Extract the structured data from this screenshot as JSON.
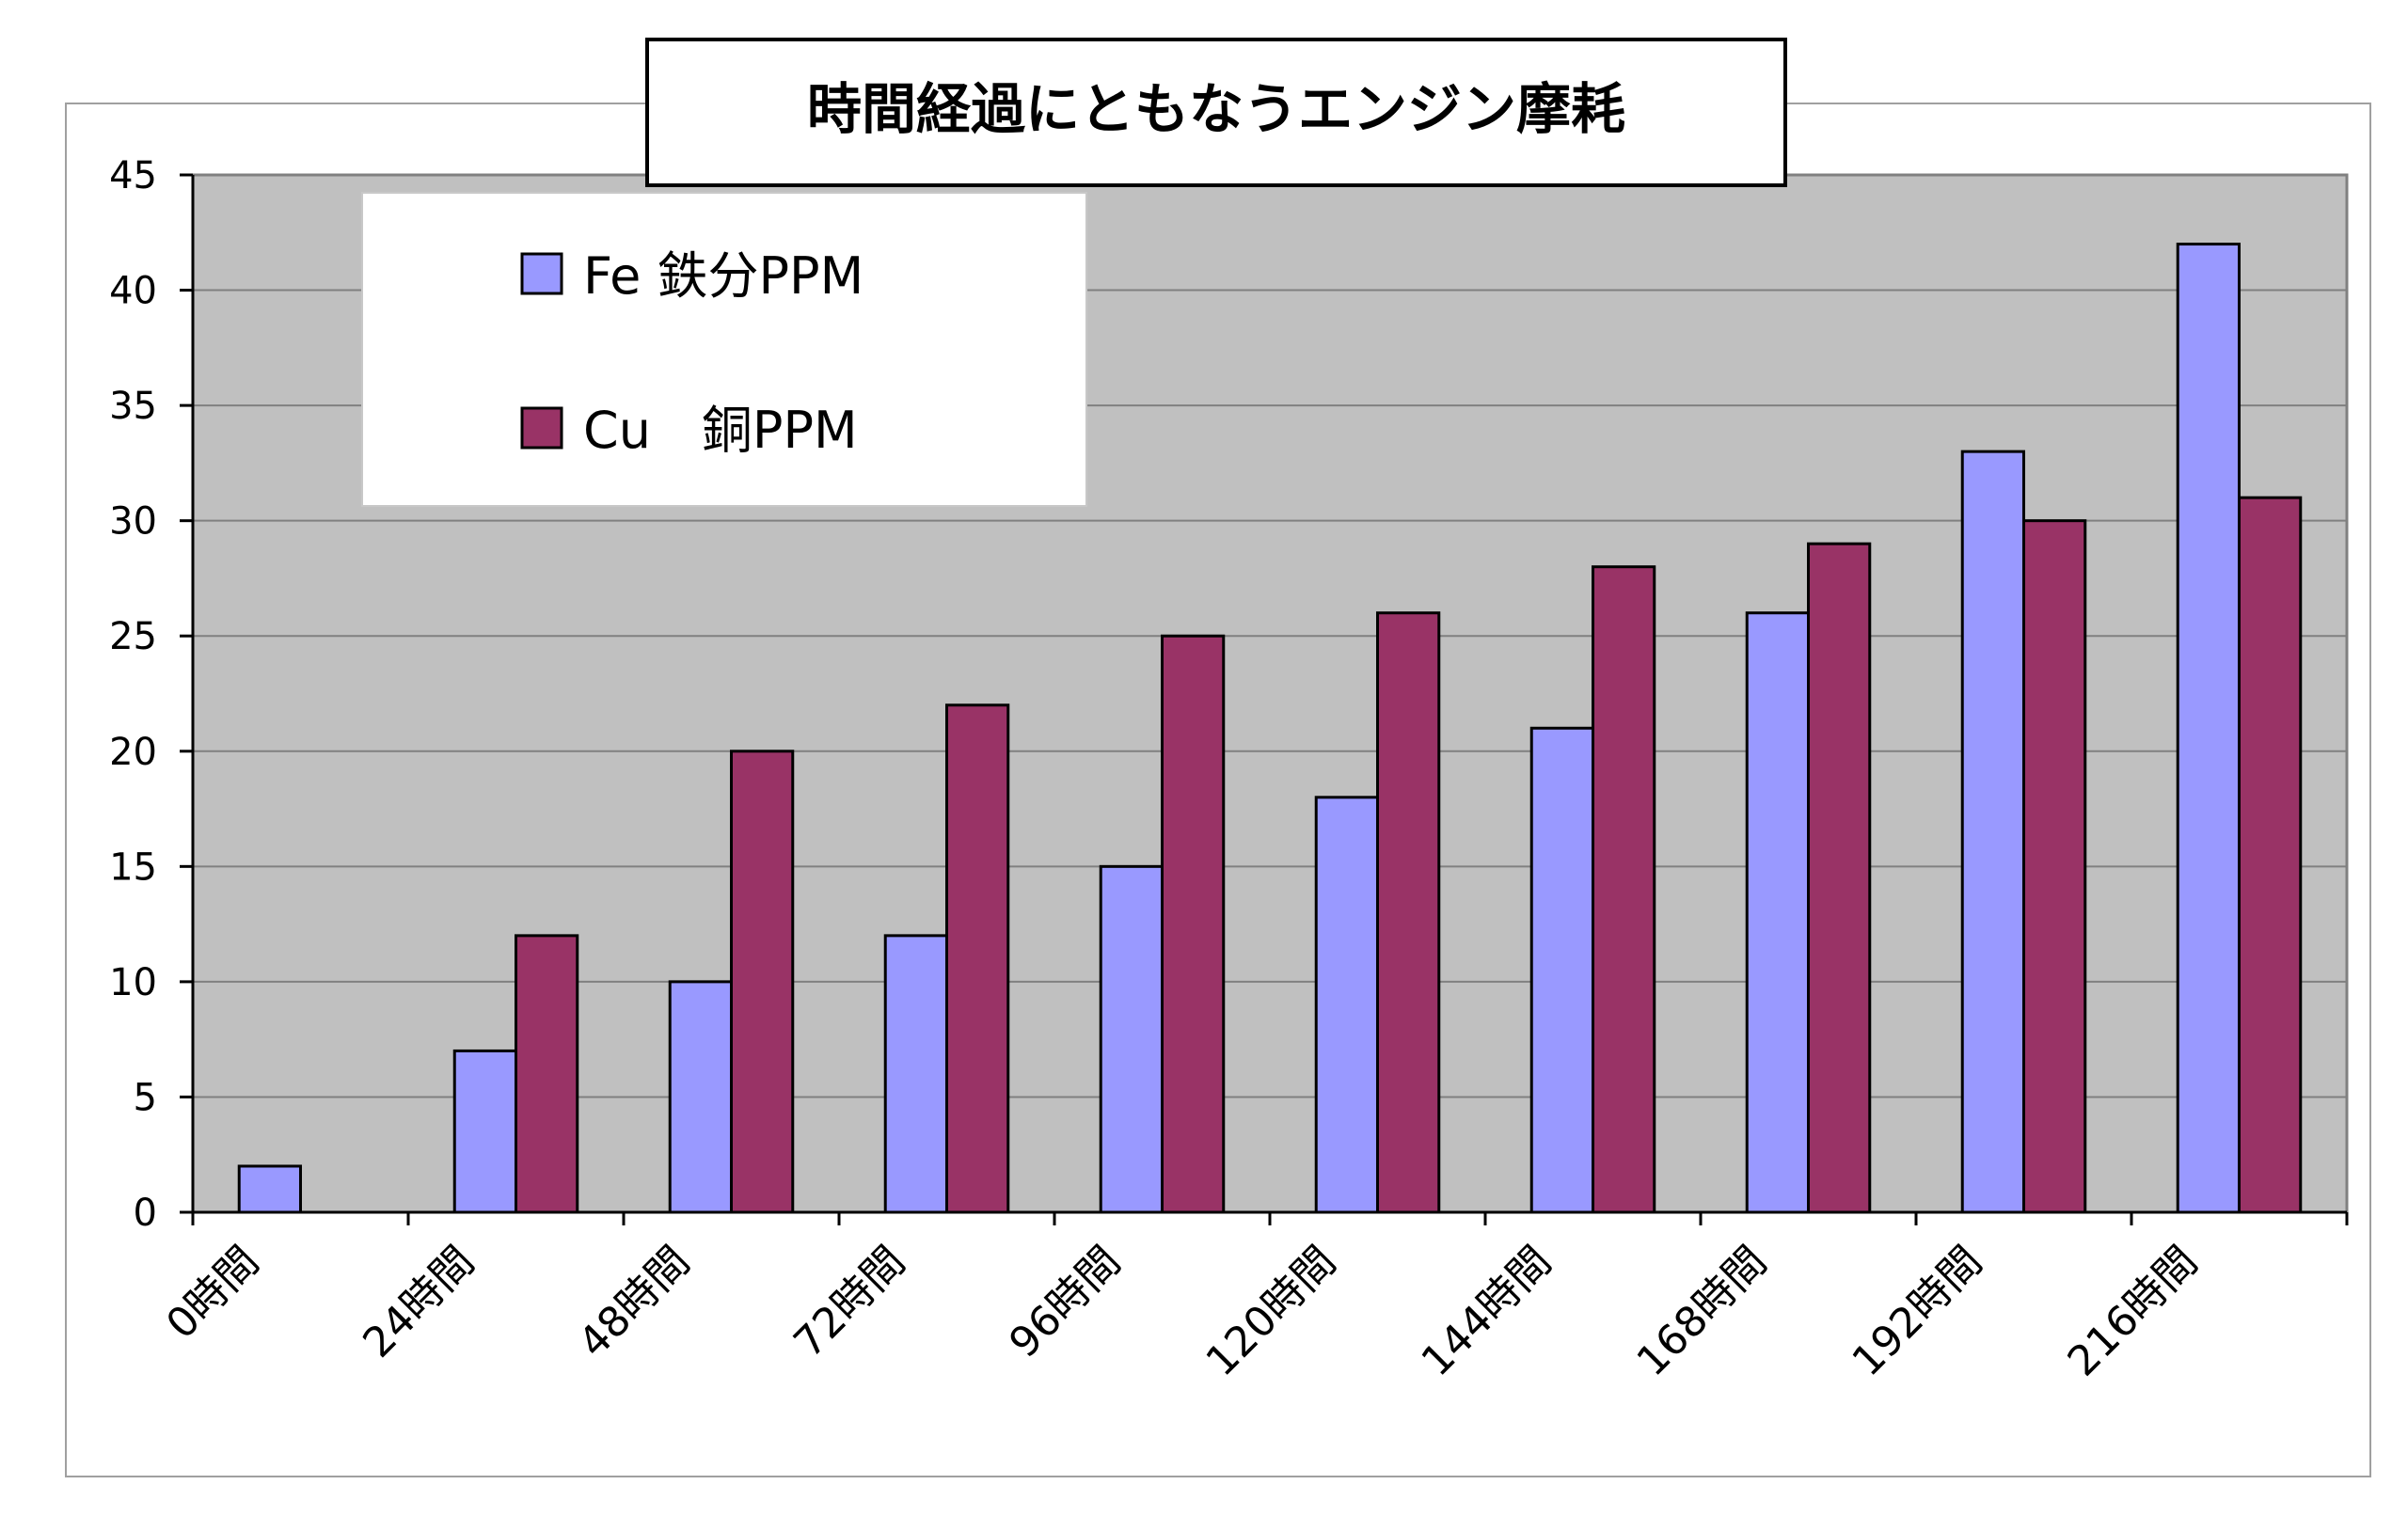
{
  "chart_data": {
    "type": "bar",
    "title": "時間経過にともなうエンジン摩耗",
    "categories": [
      "0時間",
      "24時間",
      "48時間",
      "72時間",
      "96時間",
      "120時間",
      "144時間",
      "168時間",
      "192時間",
      "216時間"
    ],
    "series": [
      {
        "name": "Fe 鉄分PPM",
        "color": "#9999ff",
        "values": [
          2,
          7,
          10,
          12,
          15,
          18,
          21,
          26,
          33,
          42
        ]
      },
      {
        "name": "Cu　銅PPM",
        "color": "#993366",
        "values": [
          0,
          12,
          20,
          22,
          25,
          26,
          28,
          29,
          30,
          31
        ]
      }
    ],
    "y_ticks": [
      "0",
      "5",
      "10",
      "15",
      "20",
      "25",
      "30",
      "35",
      "40",
      "45"
    ],
    "ylim": [
      0,
      45
    ],
    "grid": true,
    "legend_position": "top-left",
    "plot_background": "#c0c0c0"
  }
}
